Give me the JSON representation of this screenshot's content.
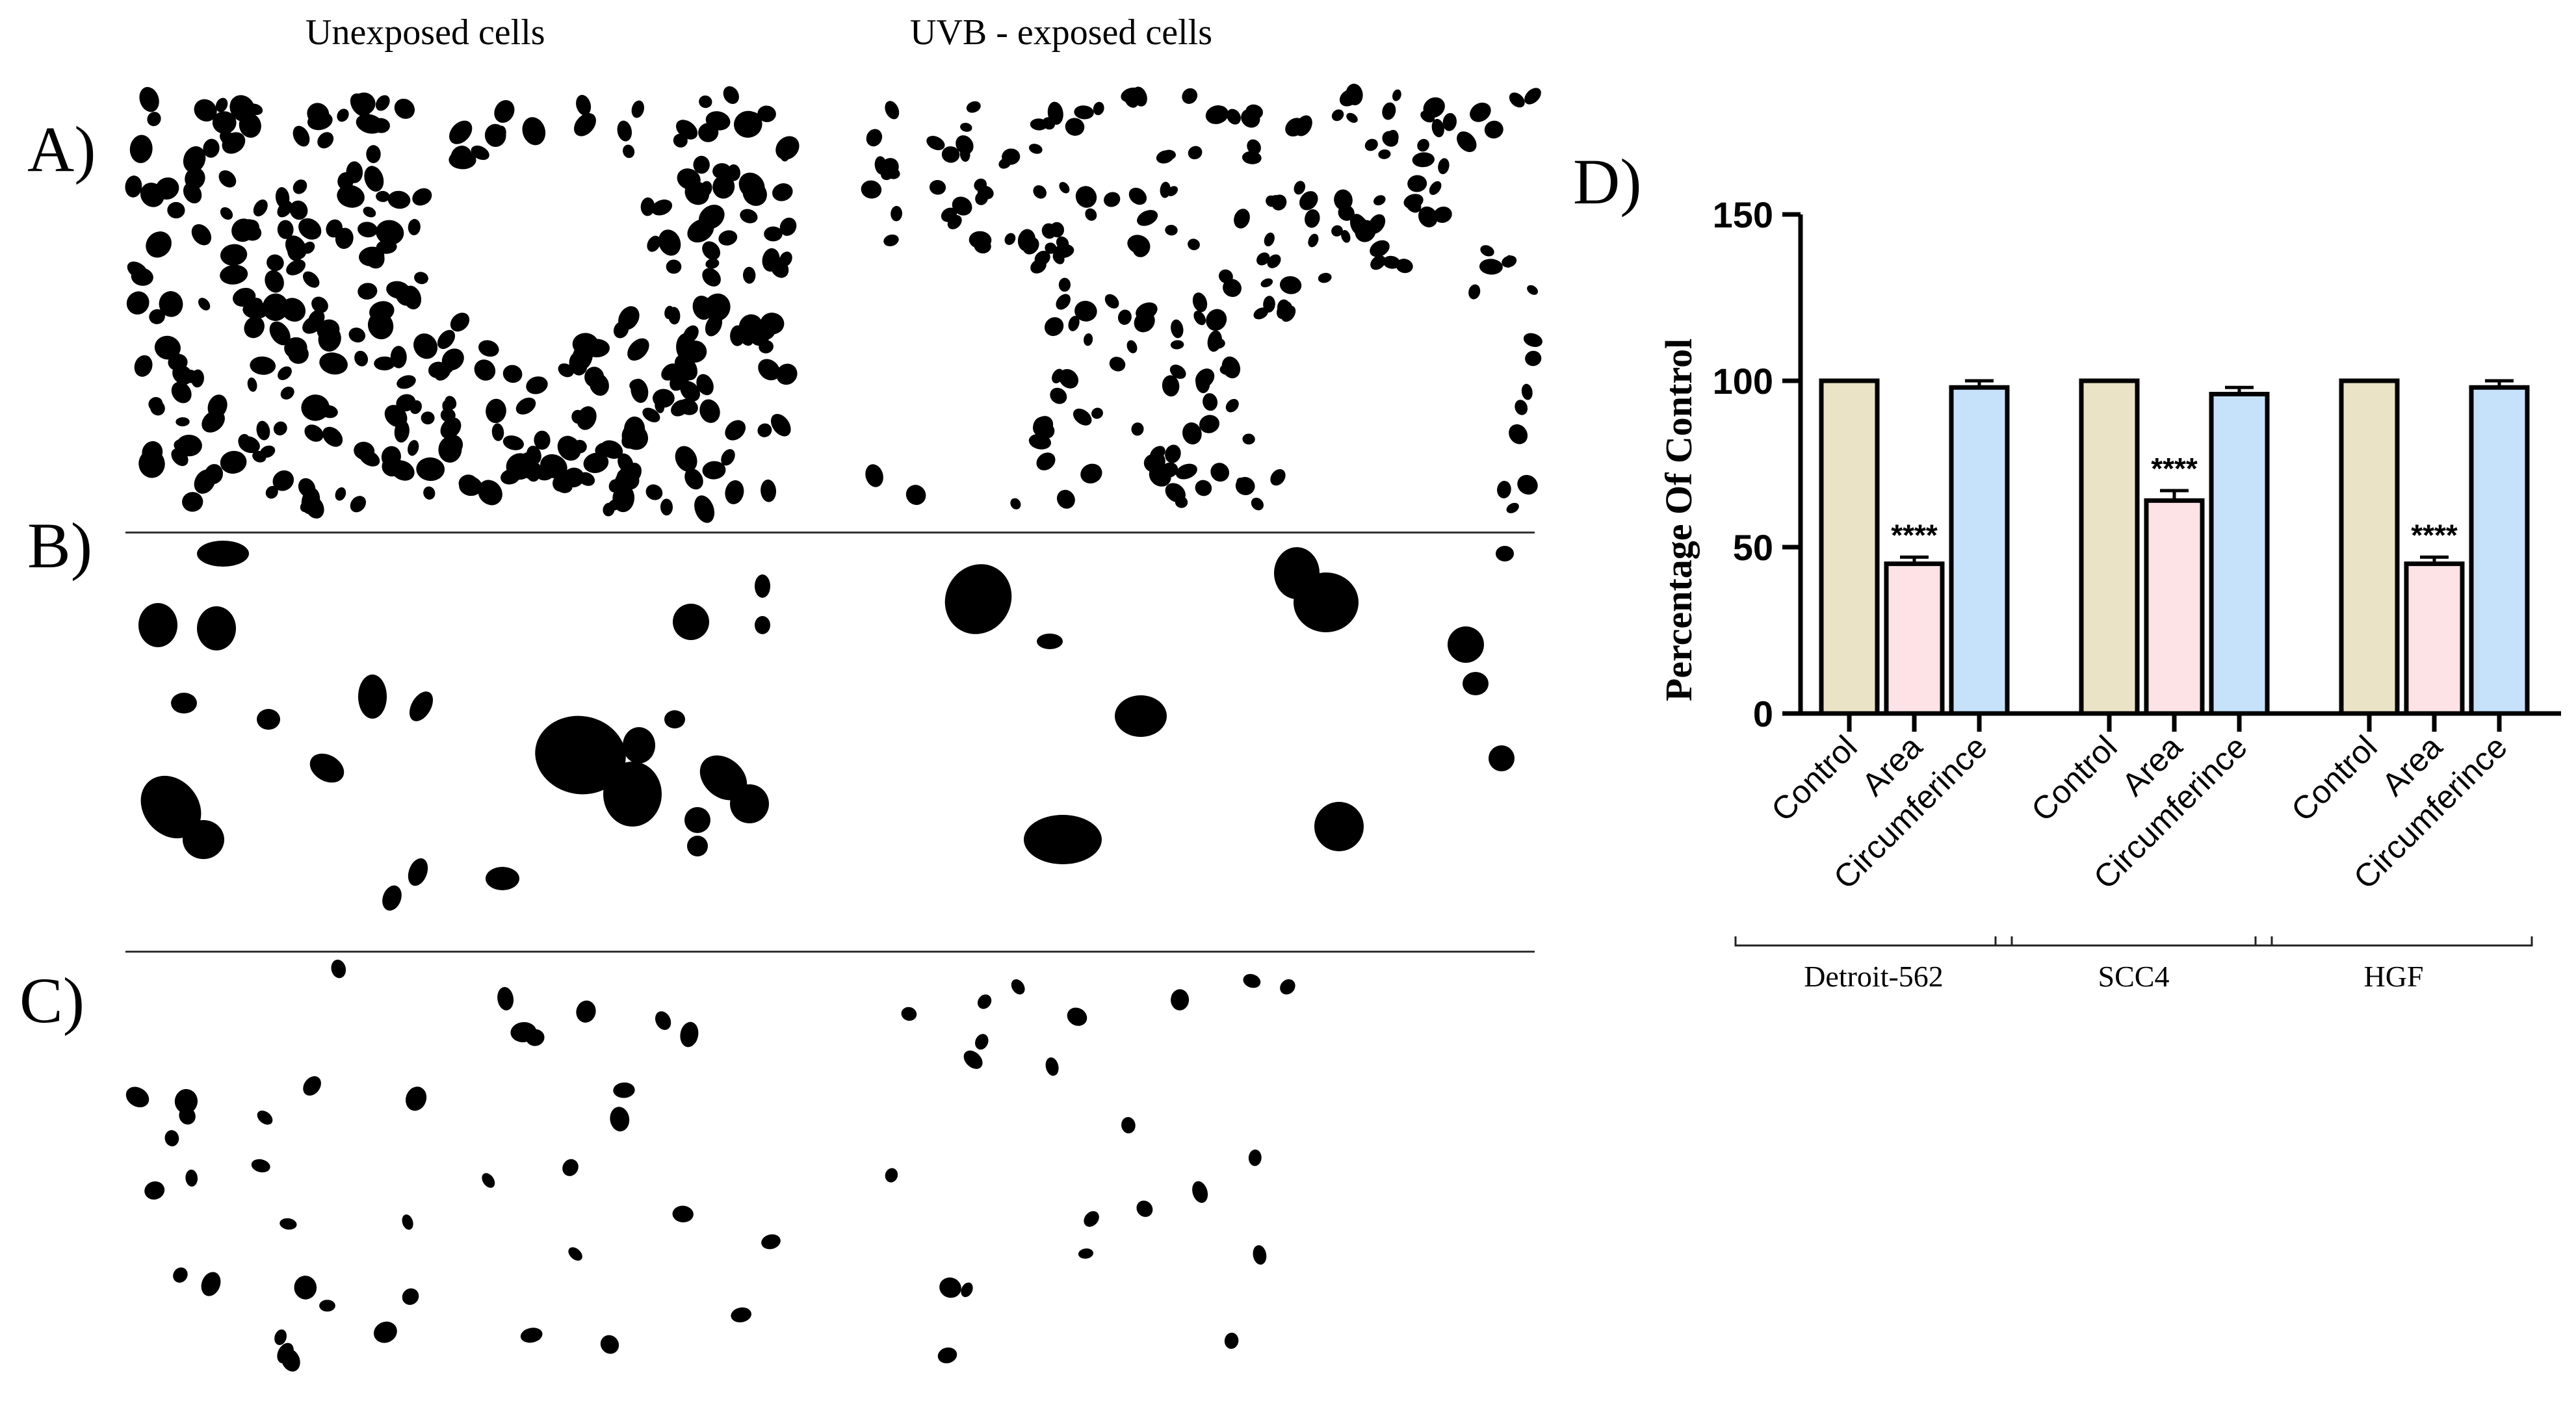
{
  "figure": {
    "column_titles": {
      "unexposed": "Unexposed cells",
      "exposed": "UVB - exposed cells"
    },
    "panels": {
      "a": "A)",
      "b": "B)",
      "c": "C)",
      "d": "D)"
    }
  },
  "chart_data": {
    "type": "bar",
    "ylabel": "Percentage Of Control",
    "ylim": [
      0,
      150
    ],
    "yticks": [
      0,
      50,
      100,
      150
    ],
    "groups": [
      {
        "name": "Detroit-562",
        "bars": [
          {
            "label": "Control",
            "value": 100,
            "error": 0,
            "sig": ""
          },
          {
            "label": "Area",
            "value": 45,
            "error": 2,
            "sig": "****"
          },
          {
            "label": "Circumferince",
            "value": 98,
            "error": 2,
            "sig": ""
          }
        ]
      },
      {
        "name": "SCC4",
        "bars": [
          {
            "label": "Control",
            "value": 100,
            "error": 0,
            "sig": ""
          },
          {
            "label": "Area",
            "value": 64,
            "error": 3,
            "sig": "****"
          },
          {
            "label": "Circumferince",
            "value": 96,
            "error": 2,
            "sig": ""
          }
        ]
      },
      {
        "name": "HGF",
        "bars": [
          {
            "label": "Control",
            "value": 100,
            "error": 0,
            "sig": ""
          },
          {
            "label": "Area",
            "value": 45,
            "error": 2,
            "sig": "****"
          },
          {
            "label": "Circumferince",
            "value": 98,
            "error": 2,
            "sig": ""
          }
        ]
      }
    ],
    "colors": {
      "Control": "#ebe3c6",
      "Area": "#fde3e6",
      "Circumferince": "#c6e2fb"
    }
  }
}
